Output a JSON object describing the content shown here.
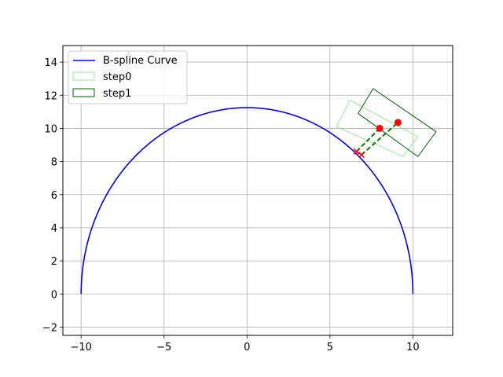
{
  "chart_data": {
    "type": "line",
    "title": "",
    "xlabel": "",
    "ylabel": "",
    "xlim": [
      -11.1,
      12.4
    ],
    "ylim": [
      -2.5,
      15.0
    ],
    "grid": true,
    "legend_placement": "upper-left",
    "x_ticks": [
      -10,
      -5,
      0,
      5,
      10
    ],
    "y_ticks": [
      -2,
      0,
      2,
      4,
      6,
      8,
      10,
      12,
      14
    ],
    "legend": [
      {
        "label": "B-spline Curve",
        "style": "line",
        "color": "#0000ff"
      },
      {
        "label": "step0",
        "style": "rect",
        "color": "#90ee90"
      },
      {
        "label": "step1",
        "style": "rect",
        "color": "#006400"
      }
    ],
    "curve": {
      "name": "B-spline Curve",
      "color": "#0000ff",
      "center": [
        0,
        0
      ],
      "radius_x": 10.0,
      "radius_y": 11.25,
      "angle_start_deg": 0,
      "angle_end_deg": 180
    },
    "rectangles": [
      {
        "name": "step0",
        "color": "#90ee90",
        "corners": [
          [
            6.2,
            11.7
          ],
          [
            10.3,
            9.5
          ],
          [
            9.4,
            8.3
          ],
          [
            5.4,
            10.1
          ]
        ]
      },
      {
        "name": "step1",
        "color": "#006400",
        "corners": [
          [
            7.6,
            12.4
          ],
          [
            11.4,
            9.8
          ],
          [
            10.3,
            8.3
          ],
          [
            6.7,
            10.9
          ]
        ]
      }
    ],
    "dashed_lines": [
      {
        "color": "#008000",
        "from": [
          6.6,
          8.6
        ],
        "to": [
          8.0,
          10.0
        ]
      },
      {
        "color": "#008000",
        "from": [
          6.9,
          8.4
        ],
        "to": [
          9.1,
          10.35
        ]
      }
    ],
    "points": [
      {
        "x": 8.0,
        "y": 10.0,
        "marker": "circle",
        "color": "#ff0000"
      },
      {
        "x": 9.1,
        "y": 10.35,
        "marker": "circle",
        "color": "#ff0000"
      },
      {
        "x": 6.6,
        "y": 8.6,
        "marker": "x",
        "color": "#ff0000"
      },
      {
        "x": 6.9,
        "y": 8.4,
        "marker": "x",
        "color": "#ff0000"
      }
    ]
  }
}
